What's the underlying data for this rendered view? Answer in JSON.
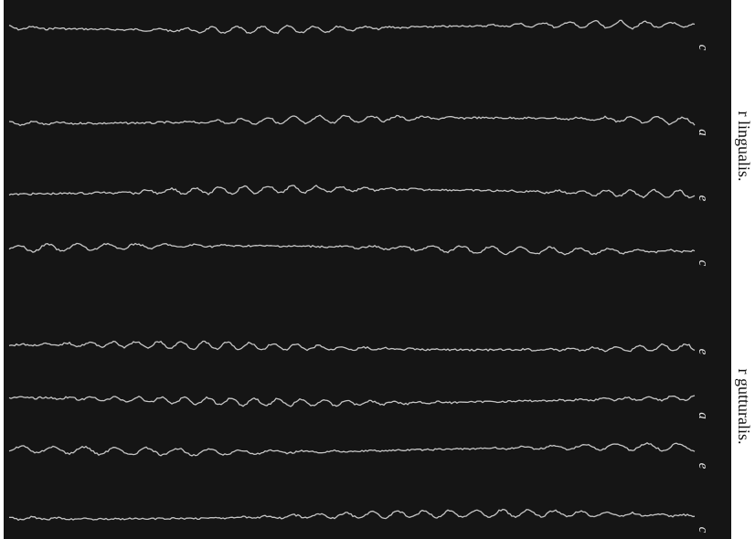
{
  "traces": [
    {
      "label": "c"
    },
    {
      "label": "a"
    },
    {
      "label": "e"
    },
    {
      "label": "c"
    },
    {
      "label": "e"
    },
    {
      "label": "a"
    },
    {
      "label": "e"
    },
    {
      "label": "c"
    }
  ],
  "side_labels": [
    "r lingualis.",
    "r gutturalis."
  ]
}
